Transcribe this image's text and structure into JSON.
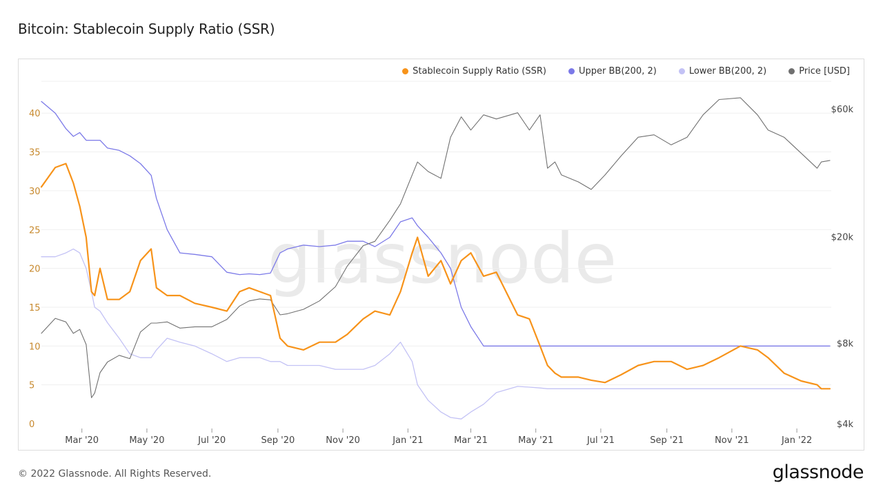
{
  "page": {
    "title": "Bitcoin: Stablecoin Supply Ratio (SSR)",
    "copyright": "© 2022 Glassnode. All Rights Reserved.",
    "brand": "glassnode",
    "watermark": "glassnode"
  },
  "legend": [
    {
      "label": "Stablecoin Supply Ratio (SSR)",
      "color": "#f7931a"
    },
    {
      "label": "Upper BB(200, 2)",
      "color": "#7b79e8"
    },
    {
      "label": "Lower BB(200, 2)",
      "color": "#c3c2f5"
    },
    {
      "label": "Price [USD]",
      "color": "#707070"
    }
  ],
  "chart_data": {
    "type": "line",
    "title": "Bitcoin: Stablecoin Supply Ratio (SSR)",
    "x_ticks": [
      "Mar '20",
      "May '20",
      "Jul '20",
      "Sep '20",
      "Nov '20",
      "Jan '21",
      "Mar '21",
      "May '21",
      "Jul '21",
      "Sep '21",
      "Nov '21",
      "Jan '22"
    ],
    "y_left": {
      "ticks": [
        "0",
        "5",
        "10",
        "15",
        "20",
        "25",
        "30",
        "35",
        "40"
      ],
      "range": [
        0,
        45
      ],
      "scale": "linear"
    },
    "y_right": {
      "ticks": [
        "$4k",
        "$8k",
        "$20k",
        "$60k"
      ],
      "scale": "log",
      "range": [
        4000,
        60000
      ]
    },
    "x": [
      "2020-01-23",
      "2020-02-05",
      "2020-02-15",
      "2020-02-22",
      "2020-02-28",
      "2020-03-05",
      "2020-03-10",
      "2020-03-13",
      "2020-03-18",
      "2020-03-25",
      "2020-04-05",
      "2020-04-15",
      "2020-04-25",
      "2020-05-05",
      "2020-05-10",
      "2020-05-20",
      "2020-06-01",
      "2020-06-15",
      "2020-07-01",
      "2020-07-15",
      "2020-07-27",
      "2020-08-05",
      "2020-08-15",
      "2020-08-25",
      "2020-09-03",
      "2020-09-10",
      "2020-09-25",
      "2020-10-10",
      "2020-10-25",
      "2020-11-05",
      "2020-11-20",
      "2020-12-01",
      "2020-12-15",
      "2020-12-25",
      "2021-01-05",
      "2021-01-10",
      "2021-01-20",
      "2021-02-01",
      "2021-02-10",
      "2021-02-20",
      "2021-03-01",
      "2021-03-13",
      "2021-03-25",
      "2021-04-14",
      "2021-04-25",
      "2021-05-05",
      "2021-05-12",
      "2021-05-19",
      "2021-05-25",
      "2021-06-10",
      "2021-06-22",
      "2021-07-05",
      "2021-07-20",
      "2021-08-05",
      "2021-08-20",
      "2021-09-05",
      "2021-09-20",
      "2021-10-05",
      "2021-10-20",
      "2021-11-09",
      "2021-11-25",
      "2021-12-05",
      "2021-12-20",
      "2022-01-05",
      "2022-01-20",
      "2022-01-24",
      "2022-02-01"
    ],
    "series": [
      {
        "name": "Stablecoin Supply Ratio (SSR)",
        "color": "#f7931a",
        "values": [
          30.5,
          33,
          33.5,
          31,
          28,
          24,
          17,
          16.5,
          20,
          16,
          16,
          17,
          21,
          22.5,
          17.5,
          16.5,
          16.5,
          15.5,
          15,
          14.5,
          17,
          17.5,
          17,
          16.5,
          11,
          10,
          9.5,
          10.5,
          10.5,
          11.5,
          13.5,
          14.5,
          14,
          17,
          22,
          24,
          19,
          21,
          18,
          21,
          22,
          19,
          19.5,
          14,
          13.5,
          10,
          7.5,
          6.5,
          6,
          6,
          5.6,
          5.3,
          6.3,
          7.5,
          8,
          8,
          7,
          7.5,
          8.5,
          10,
          9.5,
          8.5,
          6.5,
          5.5,
          5,
          4.5,
          4.5
        ]
      },
      {
        "name": "Upper BB(200, 2)",
        "color": "#7b79e8",
        "values": [
          41.5,
          40,
          38,
          37,
          37.5,
          36.5,
          36.5,
          36.5,
          36.5,
          35.5,
          35.2,
          34.5,
          33.5,
          32,
          29,
          25,
          22,
          21.8,
          21.5,
          19.5,
          19.2,
          19.3,
          19.2,
          19.4,
          22,
          22.5,
          23,
          22.8,
          23,
          23.5,
          23.5,
          22.8,
          24,
          26,
          26.5,
          25.5,
          24,
          22,
          20,
          15,
          12.5,
          10,
          10,
          10,
          10,
          10,
          10,
          10,
          10,
          10,
          10,
          10,
          10,
          10,
          10,
          10,
          10,
          10,
          10,
          10,
          10,
          10,
          10,
          10,
          10,
          10,
          10
        ]
      },
      {
        "name": "Lower BB(200, 2)",
        "color": "#c3c2f5",
        "values": [
          21.5,
          21.5,
          22,
          22.5,
          22,
          20,
          17,
          15,
          14.5,
          13,
          11,
          9,
          8.5,
          8.5,
          9.5,
          11,
          10.5,
          10,
          9,
          8,
          8.5,
          8.5,
          8.5,
          8,
          8,
          7.5,
          7.5,
          7.5,
          7,
          7,
          7,
          7.5,
          9,
          10.5,
          8,
          5,
          3,
          1.5,
          0.8,
          0.6,
          1.5,
          2.5,
          4,
          4.8,
          4.7,
          4.6,
          4.5,
          4.5,
          4.5,
          4.5,
          4.5,
          4.5,
          4.5,
          4.5,
          4.5,
          4.5,
          4.5,
          4.5,
          4.5,
          4.5,
          4.5,
          4.5,
          4.5,
          4.5,
          4.5,
          4.5,
          4.5
        ]
      },
      {
        "name": "Price [USD]",
        "color": "#707070",
        "axis": "right",
        "values": [
          8700,
          9900,
          9600,
          8700,
          9000,
          7900,
          5000,
          5200,
          6200,
          6800,
          7200,
          7000,
          8800,
          9500,
          9500,
          9600,
          9100,
          9200,
          9200,
          9800,
          11000,
          11500,
          11700,
          11600,
          10200,
          10300,
          10700,
          11500,
          13000,
          15500,
          18500,
          19200,
          23000,
          26500,
          34000,
          38000,
          35000,
          33000,
          47000,
          56000,
          50000,
          57000,
          55000,
          58000,
          50000,
          57000,
          36000,
          38000,
          34000,
          32000,
          30000,
          34000,
          40000,
          47000,
          48000,
          44000,
          47000,
          57000,
          65000,
          66000,
          57000,
          50000,
          47000,
          41000,
          36000,
          38000,
          38500
        ]
      }
    ]
  }
}
